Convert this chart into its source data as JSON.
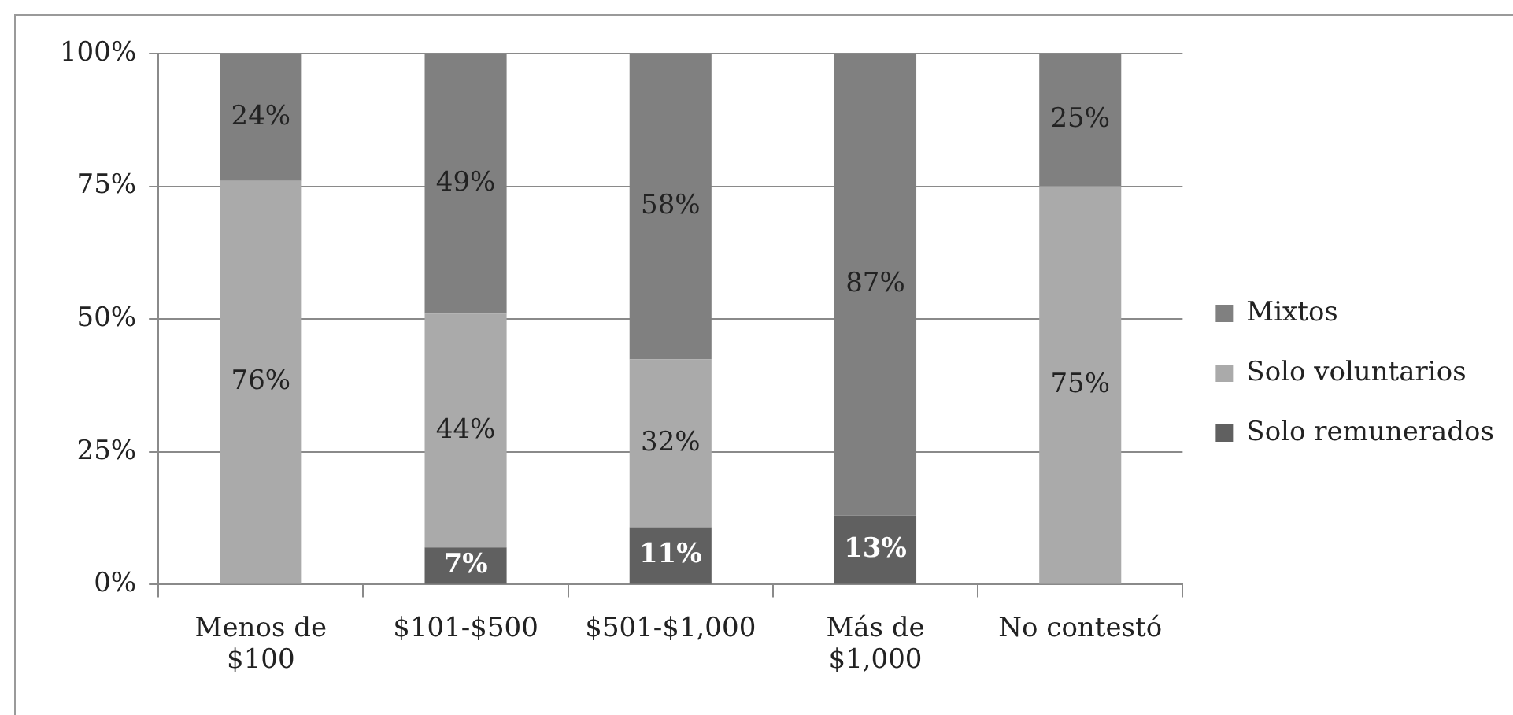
{
  "chart_data": {
    "type": "bar",
    "stacked": true,
    "categories": [
      "Menos de $100",
      "$101-$500",
      "$501-$1,000",
      "Más de $1,000",
      "No contestó"
    ],
    "series": [
      {
        "name": "Solo remunerados",
        "color": "#606060",
        "values": [
          0,
          7,
          10.8,
          13,
          0
        ],
        "value_labels": [
          null,
          "7%",
          "11%",
          "13%",
          null
        ]
      },
      {
        "name": "Solo voluntarios",
        "color": "#aaaaaa",
        "values": [
          76,
          44,
          31.6,
          0,
          75
        ],
        "value_labels": [
          "76%",
          "44%",
          "32%",
          null,
          "75%"
        ]
      },
      {
        "name": "Mixtos",
        "color": "#808080",
        "values": [
          24,
          49,
          57.6,
          87,
          25
        ],
        "value_labels": [
          "24%",
          "49%",
          "58%",
          "87%",
          "25%"
        ]
      }
    ],
    "ylim": [
      0,
      100
    ],
    "yticks": [
      {
        "value": 0,
        "label": "0%"
      },
      {
        "value": 25,
        "label": "25%"
      },
      {
        "value": 50,
        "label": "50%"
      },
      {
        "value": 75,
        "label": "75%"
      },
      {
        "value": 100,
        "label": "100%"
      }
    ],
    "grid": "y",
    "legend": "right"
  }
}
